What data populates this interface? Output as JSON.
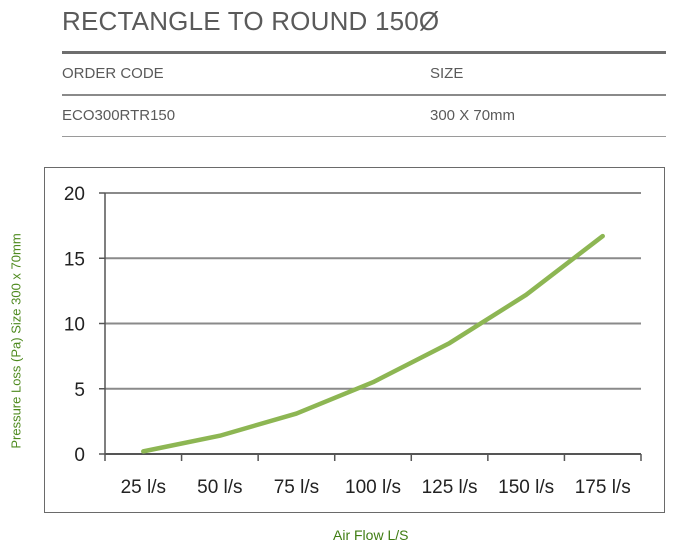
{
  "header": {
    "title": "RECTANGLE TO ROUND 150Ø"
  },
  "spec_table": {
    "columns": [
      "ORDER CODE",
      "SIZE"
    ],
    "rows": [
      [
        "ECO300RTR150",
        "300 X 70mm"
      ]
    ]
  },
  "colors": {
    "line": "#8db653",
    "axis_title": "#4e8a1e",
    "grid": "#8a8a8a"
  },
  "chart_data": {
    "type": "line",
    "title": "",
    "xlabel": "Air Flow L/S",
    "ylabel": "Pressure Loss (Pa) Size 300 x 70mm",
    "categories": [
      "25 l/s",
      "50 l/s",
      "75 l/s",
      "100 l/s",
      "125 l/s",
      "150 l/s",
      "175 l/s"
    ],
    "x": [
      25,
      50,
      75,
      100,
      125,
      150,
      175
    ],
    "y_ticks": [
      0,
      5,
      10,
      15,
      20
    ],
    "ylim": [
      0,
      20
    ],
    "grid": true,
    "legend": "none",
    "series": [
      {
        "values": [
          0.2,
          1.4,
          3.1,
          5.5,
          8.5,
          12.2,
          16.7
        ]
      }
    ]
  }
}
